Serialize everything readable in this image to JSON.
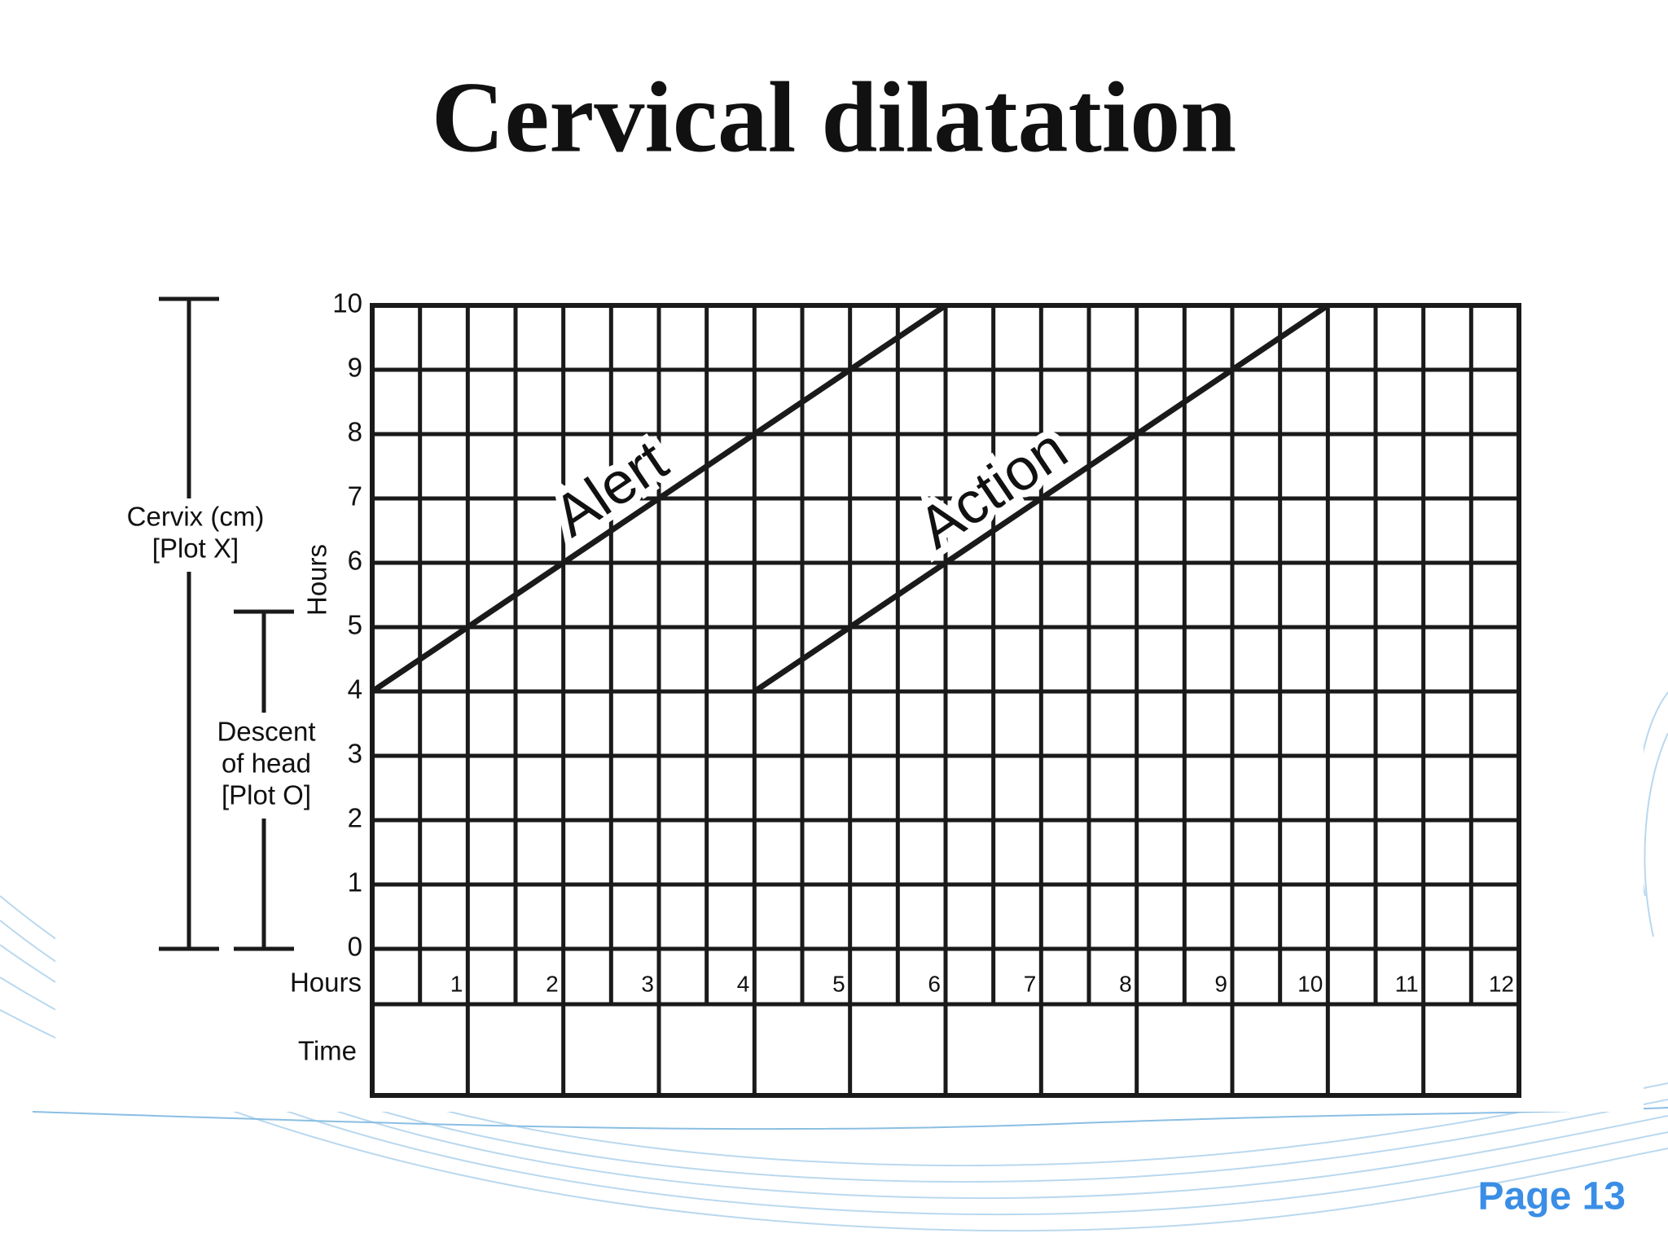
{
  "page": "Page 13",
  "chart_data": {
    "type": "line",
    "title": "Cervical dilatation",
    "y_label": "Hours",
    "x_label": "Hours",
    "time_label": "Time",
    "cervix_label": [
      "Cervix (cm)",
      "[Plot X]"
    ],
    "descent_label": [
      "Descent",
      "of head",
      "[Plot O]"
    ],
    "xlim": [
      0,
      12
    ],
    "xticks": [
      1,
      2,
      3,
      4,
      5,
      6,
      7,
      8,
      9,
      10,
      11,
      12
    ],
    "ylim": [
      0,
      10
    ],
    "yticks": [
      0,
      1,
      2,
      3,
      4,
      5,
      6,
      7,
      8,
      9,
      10
    ],
    "grid": true,
    "series": [
      {
        "name": "Alert",
        "color": "#1a1a1a",
        "x": [
          0,
          6
        ],
        "values": [
          4,
          10
        ]
      },
      {
        "name": "Action",
        "color": "#1a1a1a",
        "x": [
          4,
          10
        ],
        "values": [
          4,
          10
        ]
      }
    ]
  }
}
